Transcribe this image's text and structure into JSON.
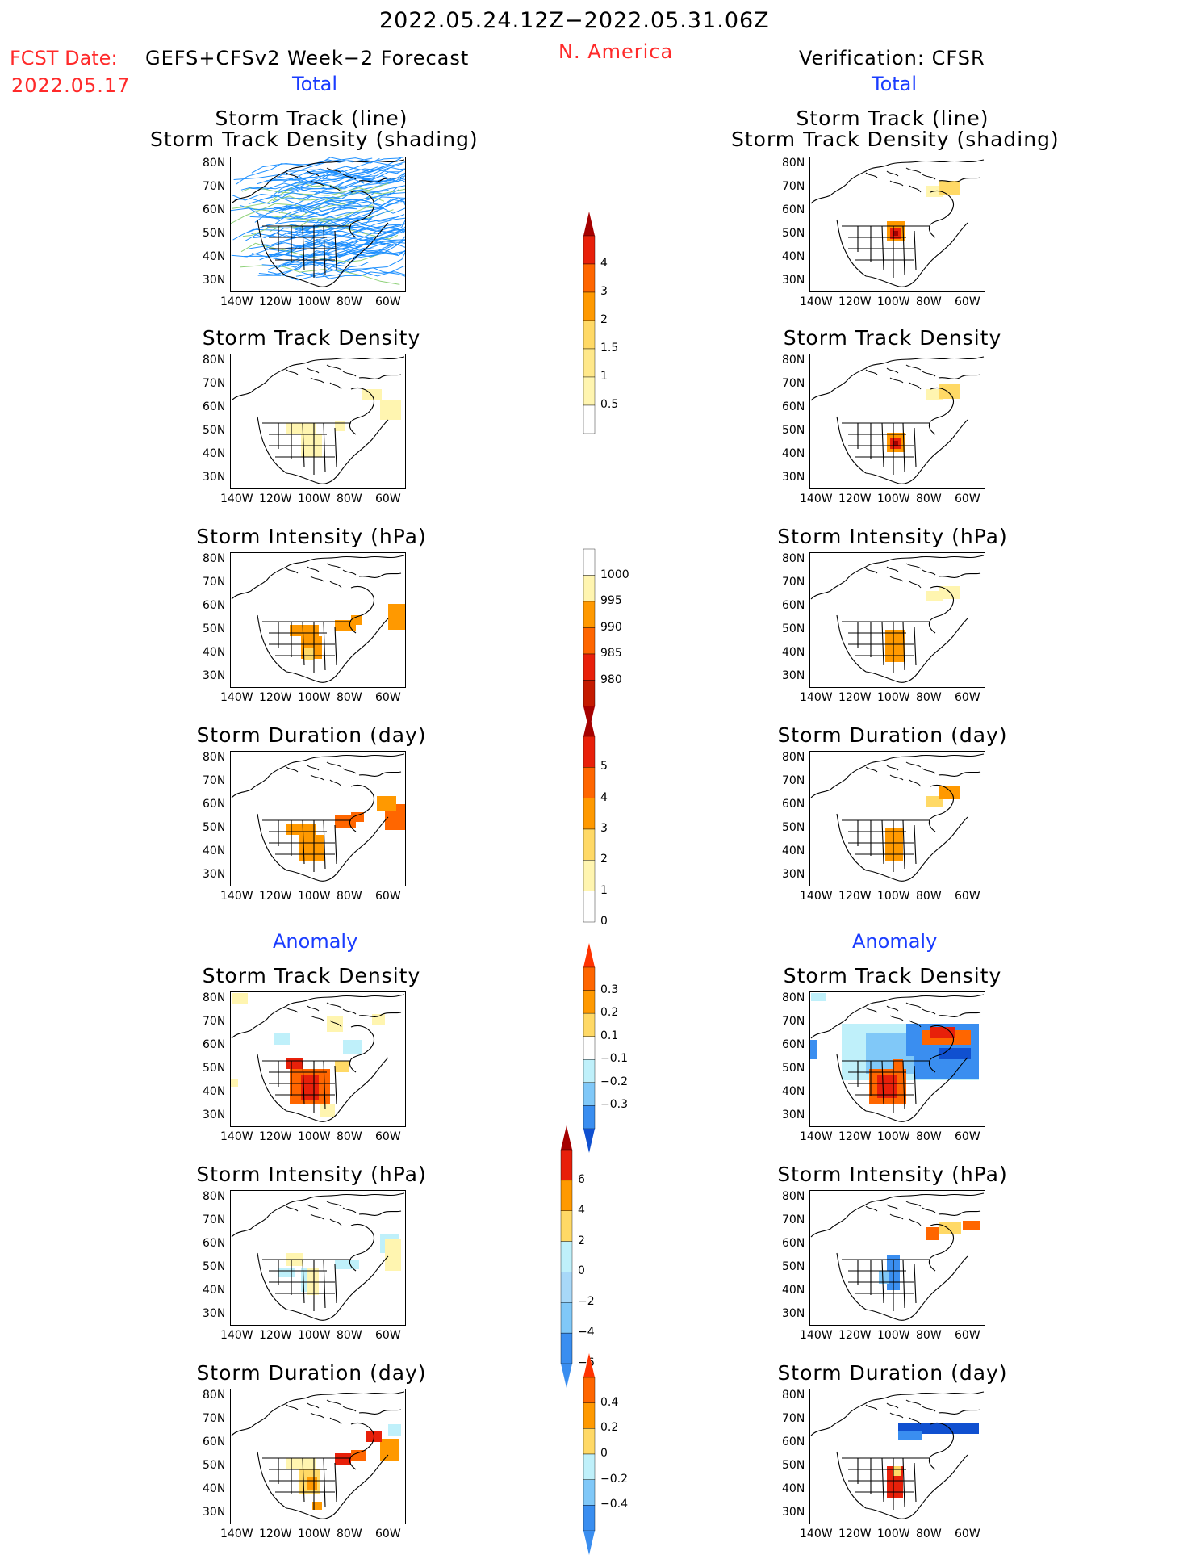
{
  "header": {
    "date_range": "2022.05.24.12Z−2022.05.31.06Z",
    "fcst_label": "FCST Date:",
    "fcst_model": "GEFS+CFSv2 Week−2 Forecast",
    "fcst_date": "2022.05.17",
    "region": "N. America",
    "verification": "Verification: CFSR"
  },
  "sections": {
    "total_left": "Total",
    "total_right": "Total",
    "anomaly_left": "Anomaly",
    "anomaly_right": "Anomaly"
  },
  "panel_titles": {
    "track_line": "Storm Track (line)",
    "track_shading": "Storm Track Density (shading)",
    "density": "Storm Track Density",
    "intensity": "Storm Intensity (hPa)",
    "duration": "Storm Duration (day)"
  },
  "axes": {
    "lat_labels": [
      "80N",
      "70N",
      "60N",
      "50N",
      "40N",
      "30N"
    ],
    "lon_labels": [
      "140W",
      "120W",
      "100W",
      "80W",
      "60W"
    ]
  },
  "colorbars": {
    "density_total": [
      "4",
      "3",
      "2",
      "1.5",
      "1",
      "0.5"
    ],
    "intensity_total": [
      "1000",
      "995",
      "990",
      "985",
      "980"
    ],
    "duration_total": [
      "5",
      "4",
      "3",
      "2",
      "1",
      "0"
    ],
    "density_anom": [
      "0.3",
      "0.2",
      "0.1",
      "−0.1",
      "−0.2",
      "−0.3"
    ],
    "intensity_anom": [
      "6",
      "4",
      "2",
      "0",
      "−2",
      "−4",
      "−6"
    ],
    "duration_anom": [
      "0.4",
      "0.2",
      "0",
      "−0.2",
      "−0.4"
    ]
  },
  "colors": {
    "track_line": "#1e90ff",
    "pale_yellow": "#fff5b0",
    "yellow": "#ffd966",
    "orange": "#ff9900",
    "dark_orange": "#ff6600",
    "red": "#e8200a",
    "dark_red": "#a50000",
    "pale_cyan": "#bff0fa",
    "light_blue": "#80c8f8",
    "mid_blue": "#3a8ef0",
    "dark_blue": "#1050d0"
  }
}
